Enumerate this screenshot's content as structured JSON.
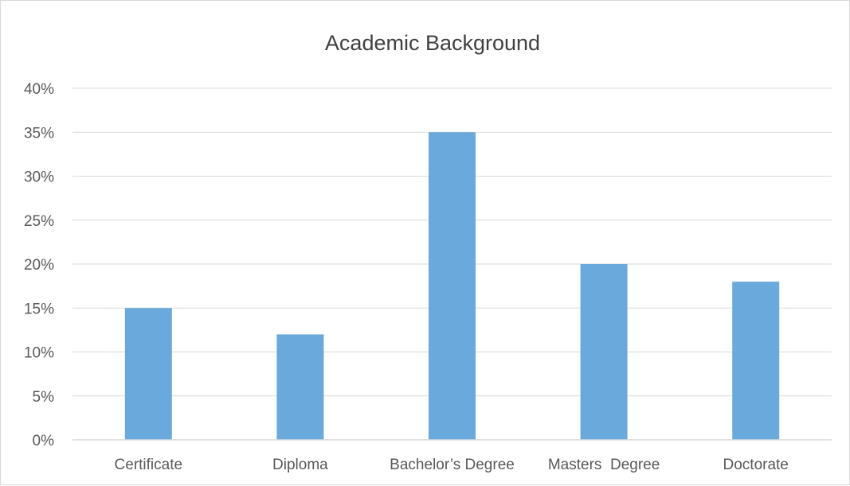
{
  "chart_data": {
    "type": "bar",
    "title": "Academic Background",
    "categories": [
      "Certificate",
      "Diploma",
      "Bachelor’s Degree",
      "Masters  Degree",
      "Doctorate"
    ],
    "values": [
      0.15,
      0.12,
      0.35,
      0.2,
      0.18
    ],
    "ylim": [
      0,
      0.4
    ],
    "yticks": [
      0,
      0.05,
      0.1,
      0.15,
      0.2,
      0.25,
      0.3,
      0.35,
      0.4
    ],
    "ytick_labels": [
      "0%",
      "5%",
      "10%",
      "15%",
      "20%",
      "25%",
      "30%",
      "35%",
      "40%"
    ],
    "xlabel": "",
    "ylabel": "",
    "grid": true,
    "legend": "none",
    "bar_color": "#6aa9db",
    "gridline_color": "#d9d9d9"
  }
}
